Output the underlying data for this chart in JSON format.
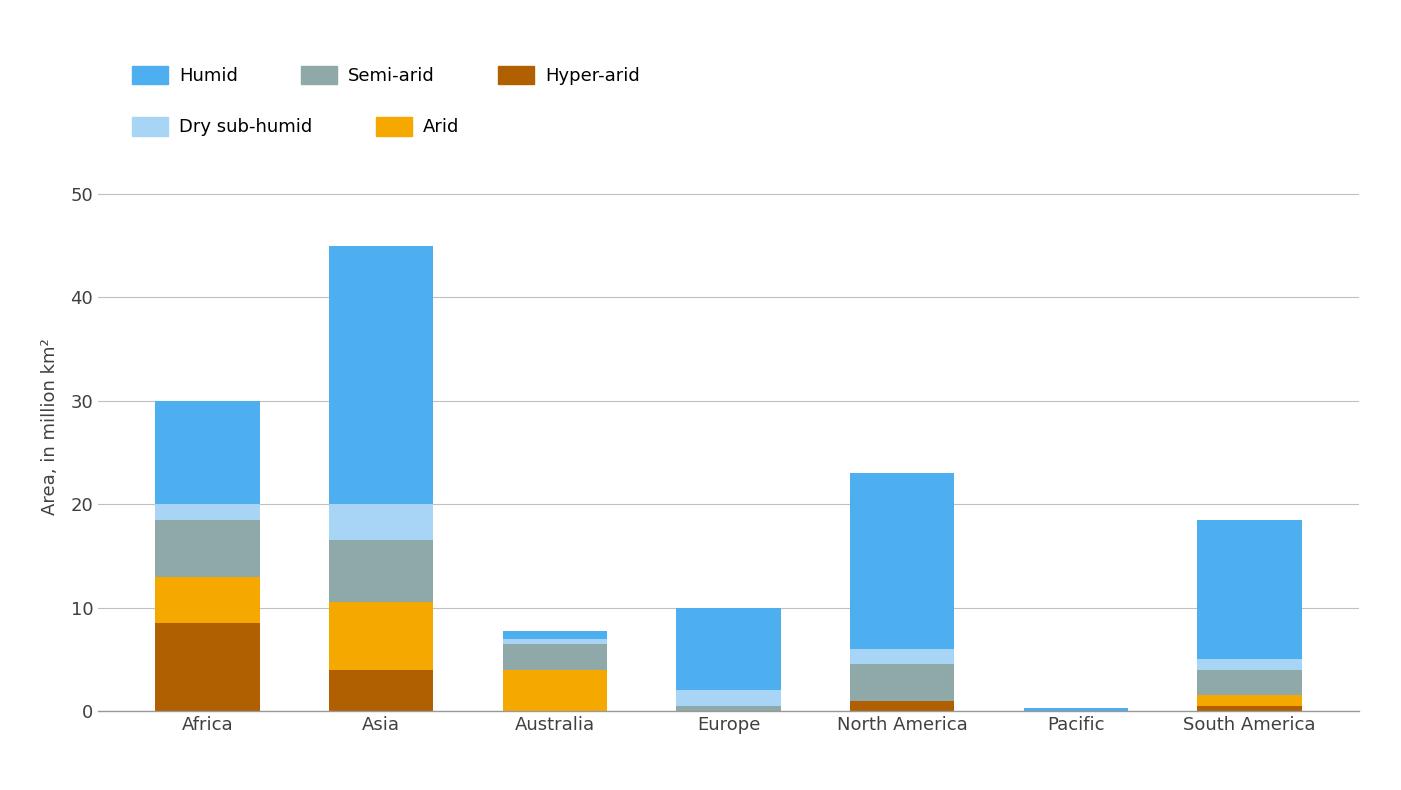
{
  "categories": [
    "Africa",
    "Asia",
    "Australia",
    "Europe",
    "North America",
    "Pacific",
    "South America"
  ],
  "series": {
    "Hyper-arid": [
      8.5,
      4.0,
      0.0,
      0.0,
      1.0,
      0.0,
      0.5
    ],
    "Arid": [
      4.5,
      6.5,
      4.0,
      0.0,
      0.0,
      0.0,
      1.0
    ],
    "Semi-arid": [
      5.5,
      6.0,
      2.5,
      0.5,
      3.5,
      0.0,
      2.5
    ],
    "Dry sub-humid": [
      1.5,
      3.5,
      0.5,
      1.5,
      1.5,
      0.0,
      1.0
    ],
    "Humid": [
      10.0,
      25.0,
      0.7,
      8.0,
      17.0,
      0.3,
      13.5
    ]
  },
  "colors": {
    "Humid": "#4DAFEF",
    "Dry sub-humid": "#A8D4F5",
    "Semi-arid": "#8FA8A8",
    "Arid": "#F5A800",
    "Hyper-arid": "#B06000"
  },
  "ylabel": "Area, in million km²",
  "ylim": [
    0,
    55
  ],
  "yticks": [
    0,
    10,
    20,
    30,
    40,
    50
  ],
  "stack_order": [
    "Hyper-arid",
    "Arid",
    "Semi-arid",
    "Dry sub-humid",
    "Humid"
  ],
  "legend_row1": [
    "Humid",
    "Semi-arid",
    "Hyper-arid"
  ],
  "legend_row2": [
    "Dry sub-humid",
    "Arid"
  ],
  "background_color": "#FFFFFF",
  "grid_color": "#C0C0C0",
  "bar_width": 0.6,
  "tick_fontsize": 13,
  "label_fontsize": 13,
  "legend_fontsize": 13
}
